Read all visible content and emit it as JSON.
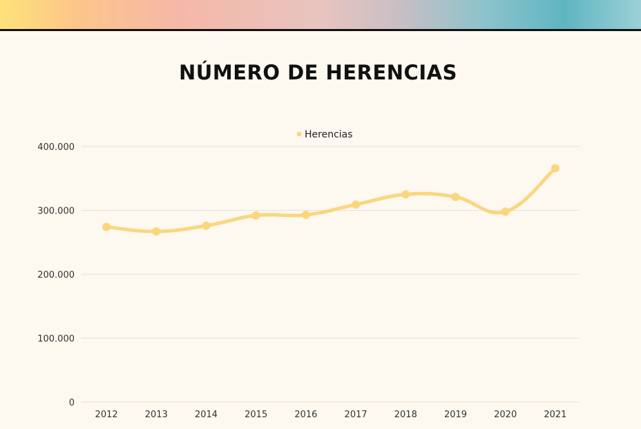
{
  "title": "NÚMERO DE HERENCIAS",
  "colors": {
    "series": "#fad77e",
    "grid": "#e6e1da",
    "background": "#fdf8f0"
  },
  "chart_data": {
    "type": "line",
    "title": "NÚMERO DE HERENCIAS",
    "categories": [
      "2012",
      "2013",
      "2014",
      "2015",
      "2016",
      "2017",
      "2018",
      "2019",
      "2020",
      "2021"
    ],
    "series": [
      {
        "name": "Herencias",
        "values": [
          274000,
          267000,
          276000,
          292000,
          293000,
          309000,
          325000,
          321000,
          298000,
          366000
        ]
      }
    ],
    "ylim": [
      0,
      400000
    ],
    "yticks": [
      0,
      100000,
      200000,
      300000,
      400000
    ],
    "ytick_labels": [
      "0",
      "100.000",
      "200.000",
      "300.000",
      "400.000"
    ],
    "grid": true,
    "smooth": true,
    "legend": "top-center"
  }
}
